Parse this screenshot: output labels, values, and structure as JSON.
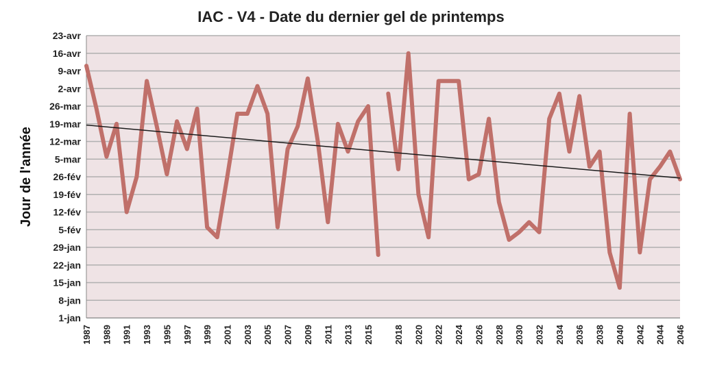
{
  "chart_data": {
    "type": "line",
    "title": "IAC - V4 - Date du dernier gel de printemps",
    "ylabel": "Jour de l'année",
    "xlabel": "",
    "y_tick_labels": [
      "1-jan",
      "8-jan",
      "15-jan",
      "22-jan",
      "29-jan",
      "5-fév",
      "12-fév",
      "19-fév",
      "26-fév",
      "5-mar",
      "12-mar",
      "19-mar",
      "26-mar",
      "2-avr",
      "9-avr",
      "16-avr",
      "23-avr"
    ],
    "ylim": [
      1,
      113
    ],
    "x_tick_labels": [
      "1987",
      "1989",
      "1991",
      "1993",
      "1995",
      "1997",
      "1999",
      "2001",
      "2003",
      "2005",
      "2007",
      "2009",
      "2011",
      "2013",
      "2015",
      "2018",
      "2020",
      "2022",
      "2024",
      "2026",
      "2028",
      "2030",
      "2032",
      "2034",
      "2036",
      "2038",
      "2040",
      "2042",
      "2044",
      "2046"
    ],
    "grid": true,
    "legend": "none",
    "series": [
      {
        "segments": [
          {
            "x": [
              1987,
              1988,
              1989,
              1990,
              1991,
              1992,
              1993,
              1994,
              1995,
              1996,
              1997,
              1998,
              1999,
              2000,
              2001,
              2002,
              2003,
              2004,
              2005,
              2006,
              2007,
              2008,
              2009,
              2010,
              2011,
              2012,
              2013,
              2014,
              2015,
              2016
            ],
            "y": [
              101,
              84,
              65,
              78,
              43,
              57,
              95,
              77,
              58,
              79,
              68,
              84,
              37,
              33,
              57,
              82,
              82,
              93,
              82,
              37,
              68,
              77,
              96,
              71,
              39,
              78,
              67,
              79,
              85,
              26
            ]
          },
          {
            "x": [
              2017,
              2018,
              2019,
              2020,
              2021,
              2022,
              2023,
              2024,
              2025,
              2026,
              2027,
              2028,
              2029,
              2030,
              2031,
              2032,
              2033,
              2034,
              2035,
              2036,
              2037,
              2038,
              2039,
              2040,
              2041,
              2042,
              2043,
              2044,
              2045,
              2046
            ],
            "y": [
              90,
              60,
              106,
              50,
              33,
              95,
              95,
              95,
              56,
              58,
              80,
              47,
              32,
              35,
              39,
              35,
              80,
              90,
              67,
              89,
              61,
              67,
              27,
              13,
              82,
              27,
              56,
              61,
              67,
              56
            ]
          }
        ]
      }
    ],
    "trendline": {
      "x": [
        1987,
        2046
      ],
      "y": [
        77.5,
        56.5
      ]
    },
    "colors": {
      "line": "#c0706a",
      "plot_background": "#efe3e5",
      "grid": "#b0b0b0",
      "trend": "#1a1a1a"
    }
  }
}
